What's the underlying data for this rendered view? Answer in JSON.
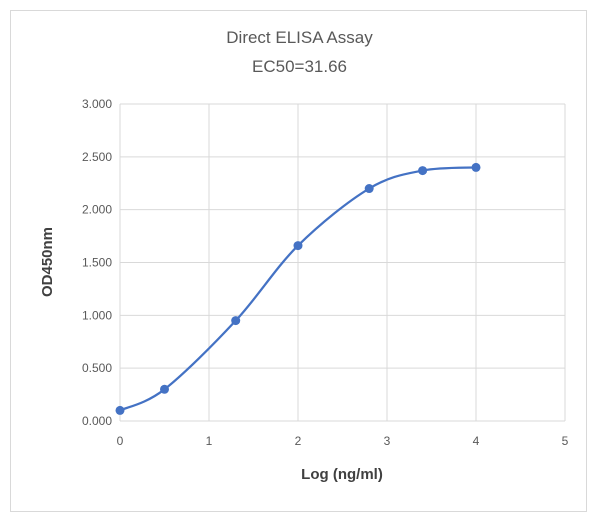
{
  "chart_data": {
    "type": "line",
    "title": "Direct ELISA Assay",
    "subtitle": "EC50=31.66",
    "xlabel": "Log (ng/ml)",
    "ylabel": "OD450nm",
    "xlim": [
      0,
      5
    ],
    "ylim": [
      0,
      3
    ],
    "x_ticks": [
      "0",
      "1",
      "2",
      "3",
      "4",
      "5"
    ],
    "y_ticks": [
      "0.000",
      "0.500",
      "1.000",
      "1.500",
      "2.000",
      "2.500",
      "3.000"
    ],
    "grid": true,
    "smooth": true,
    "series_color": "#4472c4",
    "series": [
      {
        "x": [
          0,
          0.5,
          1.3,
          2.0,
          2.8,
          3.4,
          4.0
        ],
        "y": [
          0.1,
          0.3,
          0.95,
          1.66,
          2.2,
          2.37,
          2.4
        ]
      }
    ]
  }
}
